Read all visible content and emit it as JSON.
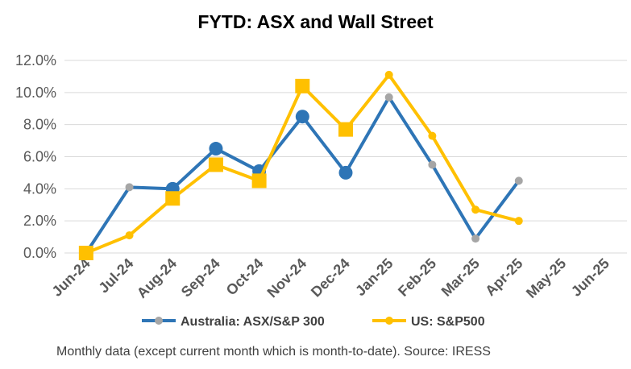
{
  "chart_data": {
    "type": "line",
    "title": "FYTD: ASX and Wall Street",
    "xlabel": "",
    "ylabel": "",
    "categories": [
      "Jun-24",
      "Jul-24",
      "Aug-24",
      "Sep-24",
      "Oct-24",
      "Nov-24",
      "Dec-24",
      "Jan-25",
      "Feb-25",
      "Mar-25",
      "Apr-25",
      "May-25",
      "Jun-25"
    ],
    "y_ticks": [
      "0.0%",
      "2.0%",
      "4.0%",
      "6.0%",
      "8.0%",
      "10.0%",
      "12.0%"
    ],
    "ylim": [
      0,
      12
    ],
    "grid": true,
    "legend_position": "bottom",
    "series": [
      {
        "name": "Australia: ASX/S&P 300",
        "color": "#2E75B6",
        "values": [
          0.0,
          4.1,
          4.0,
          6.5,
          5.1,
          8.5,
          5.0,
          9.7,
          5.5,
          0.9,
          4.5,
          null,
          null
        ],
        "big_markers": [
          false,
          false,
          true,
          true,
          true,
          true,
          true,
          false,
          false,
          false,
          false,
          false,
          false
        ]
      },
      {
        "name": "US: S&P500",
        "color": "#FFC000",
        "values": [
          0.0,
          1.1,
          3.4,
          5.5,
          4.5,
          10.4,
          7.7,
          11.1,
          7.3,
          2.7,
          2.0,
          null,
          null
        ],
        "big_markers": [
          true,
          false,
          true,
          true,
          true,
          true,
          true,
          false,
          false,
          false,
          false,
          false,
          false
        ]
      }
    ]
  },
  "footnote": "Monthly data (except current month which is month-to-date).  Source: IRESS"
}
